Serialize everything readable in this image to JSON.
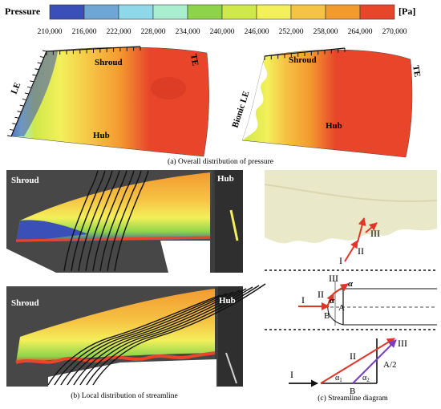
{
  "colorbar": {
    "title": "Pressure",
    "unit": "[Pa]",
    "ticks": [
      "210,000",
      "216,000",
      "222,000",
      "228,000",
      "234,000",
      "240,000",
      "246,000",
      "252,000",
      "258,000",
      "264,000",
      "270,000"
    ],
    "colors": [
      "#3b4fb8",
      "#6ea6d6",
      "#8fd8ea",
      "#a9efcf",
      "#8ed44a",
      "#cfe84a",
      "#f3f05a",
      "#f6c445",
      "#f39a2f",
      "#e8452a"
    ]
  },
  "panel_a": {
    "left_blade": {
      "le": "LE",
      "te": "TE",
      "shroud": "Shroud",
      "hub": "Hub"
    },
    "right_blade": {
      "le": "Bionic LE",
      "te": "TE",
      "shroud": "Shroud",
      "hub": "Hub"
    },
    "caption": "(a) Overall distribution of pressure"
  },
  "panel_b": {
    "top": {
      "shroud": "Shroud",
      "hub": "Hub"
    },
    "bottom": {
      "shroud": "Shroud",
      "hub": "Hub"
    },
    "caption": "(b) Local distribution of streamline"
  },
  "panel_c": {
    "labels": {
      "i_upper": "I",
      "ii_upper": "II",
      "iii_upper": "III",
      "i_mid": "I",
      "ii_mid": "II",
      "iii_mid": "III",
      "alpha_mid1": "α",
      "alpha_mid2": "α",
      "a_mid": "A",
      "b_mid": "B",
      "i_low": "I",
      "ii_low": "II",
      "iii_low": "III",
      "alpha1": "α",
      "sub1": "1",
      "alpha2": "α",
      "sub2": "2",
      "a_half": "A/2",
      "b_low": "B"
    },
    "caption": "(c) Streamline diagram"
  }
}
